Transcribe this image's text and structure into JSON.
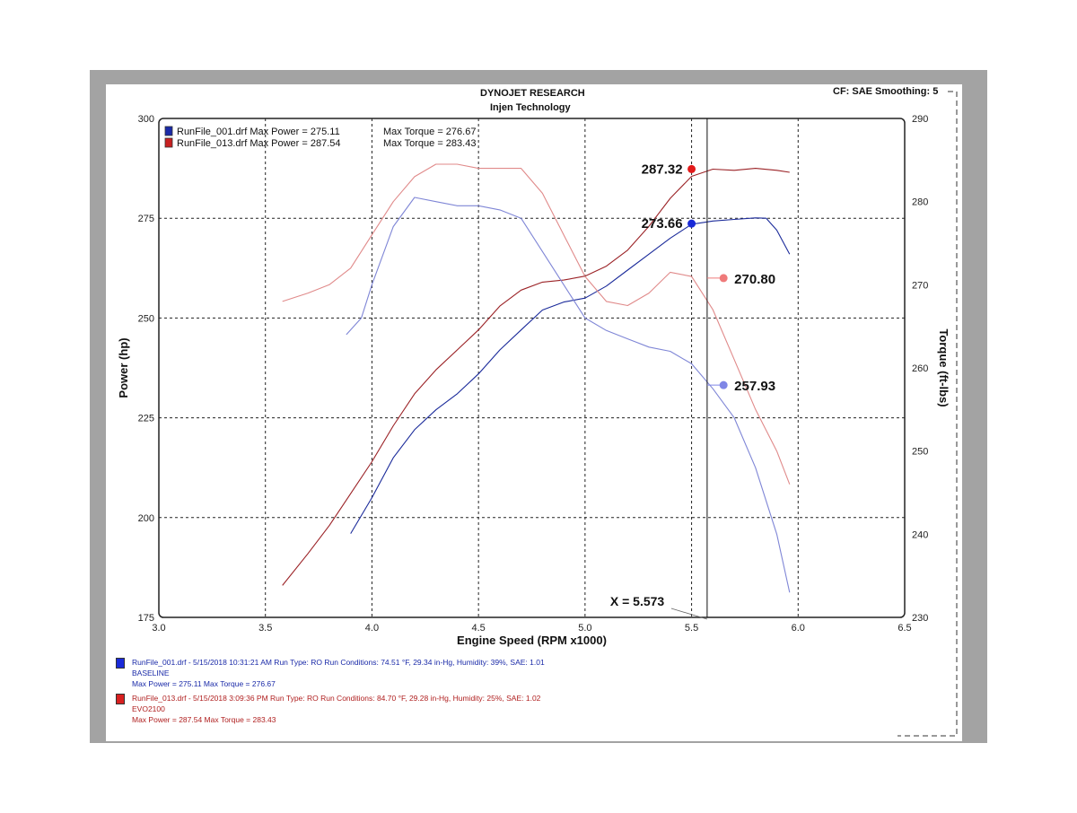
{
  "header": {
    "title": "DYNOJET RESEARCH",
    "subtitle": "Injen Technology",
    "settings": "CF: SAE  Smoothing: 5"
  },
  "colors": {
    "power_001": "#1a2a9a",
    "power_013": "#9b2226",
    "torque_001": "#7f86d6",
    "torque_013": "#e08a8a"
  },
  "chart_data": {
    "type": "line",
    "xlabel": "Engine Speed (RPM x1000)",
    "ylabel": "Power (hp)",
    "y2label": "Torque (ft-lbs)",
    "xlim": [
      3.0,
      6.5
    ],
    "ylim": [
      175,
      300
    ],
    "y2lim": [
      230,
      290
    ],
    "xticks": [
      "3.0",
      "3.5",
      "4.0",
      "4.5",
      "5.0",
      "5.5",
      "6.0",
      "6.5"
    ],
    "yticks": [
      "175",
      "200",
      "225",
      "250",
      "275",
      "300"
    ],
    "y2ticks": [
      "230",
      "240",
      "250",
      "260",
      "270",
      "280",
      "290"
    ],
    "grid": true,
    "legend": [
      {
        "label": "RunFile_001.drf Max Power = 275.11",
        "torque": "Max Torque = 276.67",
        "color": "#1a2aa8"
      },
      {
        "label": "RunFile_013.drf Max Power = 287.54",
        "torque": "Max Torque = 283.43",
        "color": "#c82020"
      }
    ],
    "series": [
      {
        "axis": "power",
        "color": "#1a2a9a",
        "x": [
          3.9,
          4.0,
          4.1,
          4.2,
          4.3,
          4.4,
          4.5,
          4.6,
          4.7,
          4.8,
          4.9,
          5.0,
          5.1,
          5.2,
          5.3,
          5.4,
          5.5,
          5.6,
          5.7,
          5.8,
          5.85,
          5.9,
          5.96
        ],
        "y": [
          196,
          205,
          215,
          222,
          227,
          231,
          236,
          242,
          247,
          252,
          254,
          255,
          258,
          262,
          266,
          270,
          273.5,
          274.3,
          274.7,
          275.1,
          275,
          272,
          266
        ]
      },
      {
        "axis": "power",
        "color": "#9b2226",
        "x": [
          3.58,
          3.7,
          3.8,
          3.9,
          4.0,
          4.1,
          4.2,
          4.3,
          4.4,
          4.5,
          4.6,
          4.7,
          4.8,
          4.9,
          5.0,
          5.1,
          5.2,
          5.3,
          5.4,
          5.5,
          5.6,
          5.7,
          5.8,
          5.9,
          5.96
        ],
        "y": [
          183,
          191,
          198,
          206,
          214,
          223,
          231,
          237,
          242,
          247,
          253,
          257,
          259,
          259.5,
          260.5,
          263,
          267,
          273,
          280,
          285.5,
          287.3,
          287,
          287.5,
          287,
          286.5
        ]
      },
      {
        "axis": "torque",
        "color": "#7f86d6",
        "x": [
          3.88,
          3.95,
          4.0,
          4.1,
          4.2,
          4.3,
          4.4,
          4.5,
          4.6,
          4.7,
          4.8,
          4.9,
          5.0,
          5.1,
          5.2,
          5.3,
          5.4,
          5.5,
          5.6,
          5.7,
          5.8,
          5.9,
          5.96
        ],
        "y": [
          264,
          266,
          270,
          277,
          280.5,
          280,
          279.5,
          279.5,
          279,
          278,
          274,
          270,
          266,
          264.5,
          263.5,
          262.5,
          262,
          260.5,
          257.5,
          254,
          248,
          240,
          233
        ]
      },
      {
        "axis": "torque",
        "color": "#e08a8a",
        "x": [
          3.58,
          3.7,
          3.8,
          3.9,
          4.0,
          4.1,
          4.2,
          4.3,
          4.4,
          4.5,
          4.6,
          4.7,
          4.8,
          4.9,
          5.0,
          5.1,
          5.2,
          5.3,
          5.4,
          5.5,
          5.6,
          5.7,
          5.8,
          5.9,
          5.96
        ],
        "y": [
          268,
          269,
          270,
          272,
          276,
          280,
          283,
          284.5,
          284.5,
          284,
          284,
          284,
          281,
          276,
          271,
          268,
          267.5,
          269,
          271.5,
          271,
          267,
          261,
          255,
          250,
          246
        ]
      }
    ],
    "markers": [
      {
        "label": "287.32",
        "color": "#e31a1a",
        "axis": "power",
        "x": 5.5,
        "y": 287.32
      },
      {
        "label": "273.66",
        "color": "#1a2ad8",
        "axis": "power",
        "x": 5.5,
        "y": 273.66
      },
      {
        "label": "270.80",
        "color": "#ef7a7a",
        "axis": "torque",
        "x": 5.65,
        "y": 270.8
      },
      {
        "label": "257.93",
        "color": "#7f86e6",
        "axis": "torque",
        "x": 5.65,
        "y": 257.93
      }
    ],
    "cursor": {
      "x": 5.573,
      "label": "X = 5.573"
    }
  },
  "footer": {
    "run1": {
      "line1": "RunFile_001.drf - 5/15/2018 10:31:21 AM  Run Type: RO  Run Conditions: 74.51 °F, 29.34 in-Hg,  Humidity:  39%, SAE: 1.01",
      "line2": "BASELINE",
      "line3": "Max Power = 275.11  Max Torque = 276.67"
    },
    "run2": {
      "line1": "RunFile_013.drf - 5/15/2018 3:09:36 PM  Run Type: RO  Run Conditions: 84.70 °F, 29.28 in-Hg,  Humidity:  25%, SAE: 1.02",
      "line2": "EVO2100",
      "line3": "Max Power = 287.54  Max Torque = 283.43"
    }
  }
}
